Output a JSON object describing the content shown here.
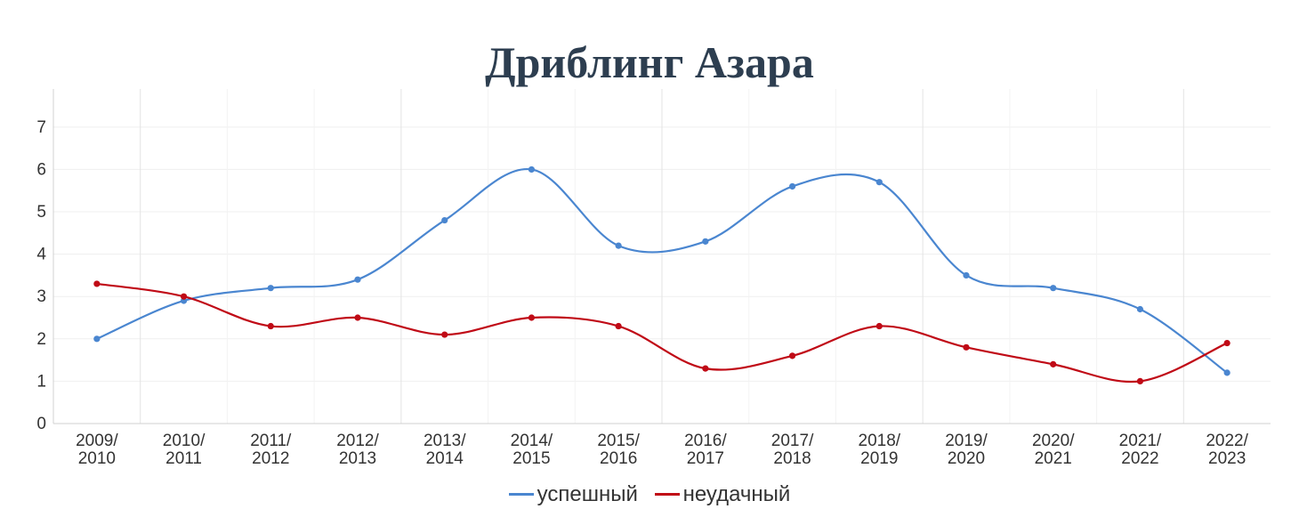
{
  "chart_data": {
    "type": "line",
    "title": "Дриблинг Азара",
    "xlabel": "",
    "ylabel": "",
    "categories": [
      [
        "2009/",
        "2010"
      ],
      [
        "2010/",
        "2011"
      ],
      [
        "2011/",
        "2012"
      ],
      [
        "2012/",
        "2013"
      ],
      [
        "2013/",
        "2014"
      ],
      [
        "2014/",
        "2015"
      ],
      [
        "2015/",
        "2016"
      ],
      [
        "2016/",
        "2017"
      ],
      [
        "2017/",
        "2018"
      ],
      [
        "2018/",
        "2019"
      ],
      [
        "2019/",
        "2020"
      ],
      [
        "2020/",
        "2021"
      ],
      [
        "2021/",
        "2022"
      ],
      [
        "2022/",
        "2023"
      ]
    ],
    "ylim": [
      0,
      7.9
    ],
    "yticks": [
      0,
      1,
      2,
      3,
      4,
      5,
      6,
      7
    ],
    "grid": true,
    "legend_position": "bottom-center",
    "series": [
      {
        "name": "успешный",
        "color": "#4a86d0",
        "values": [
          2.0,
          2.9,
          3.2,
          3.4,
          4.8,
          6.0,
          4.2,
          4.3,
          5.6,
          5.7,
          3.5,
          3.2,
          2.7,
          1.2
        ]
      },
      {
        "name": "неудачный",
        "color": "#c00a16",
        "values": [
          3.3,
          3.0,
          2.3,
          2.5,
          2.1,
          2.5,
          2.3,
          1.3,
          1.6,
          2.3,
          1.8,
          1.4,
          1.0,
          1.9
        ]
      }
    ]
  }
}
